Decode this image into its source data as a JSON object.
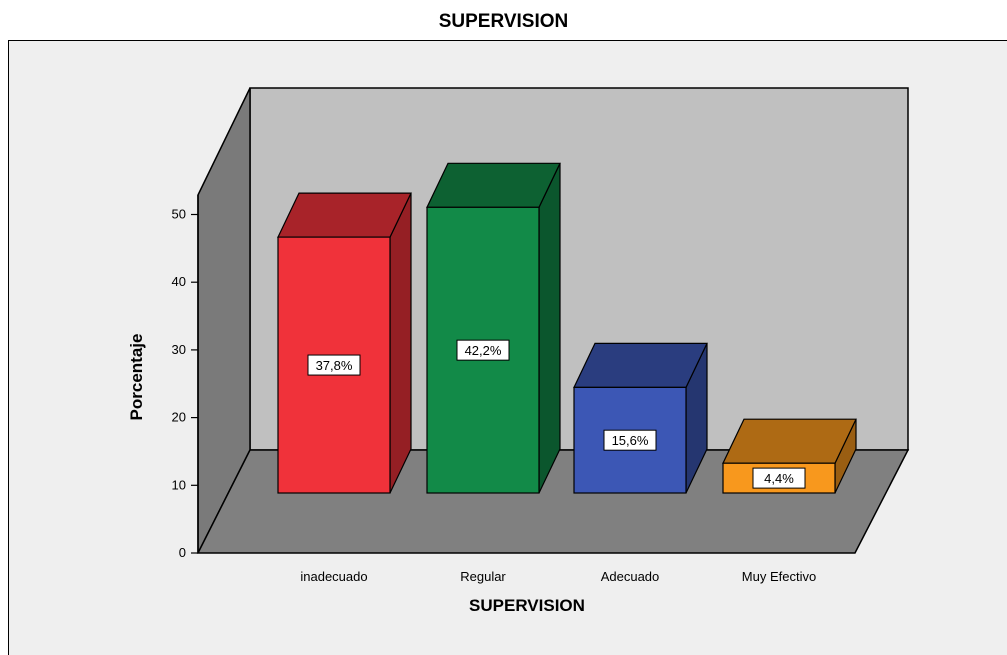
{
  "chart_data": {
    "type": "bar",
    "title": "SUPERVISION",
    "xlabel": "SUPERVISION",
    "ylabel": "Porcentaje",
    "categories": [
      "inadecuado",
      "Regular",
      "Adecuado",
      "Muy Efectivo"
    ],
    "values": [
      37.8,
      42.2,
      15.6,
      4.4
    ],
    "data_labels": [
      "37,8%",
      "42,2%",
      "15,6%",
      "4,4%"
    ],
    "colors": [
      "#f0323a",
      "#128a48",
      "#3c57b5",
      "#f8981d"
    ],
    "yticks": [
      0,
      10,
      20,
      30,
      40,
      50
    ],
    "ylim": [
      0,
      50
    ],
    "style": "3d",
    "legend": "none"
  }
}
